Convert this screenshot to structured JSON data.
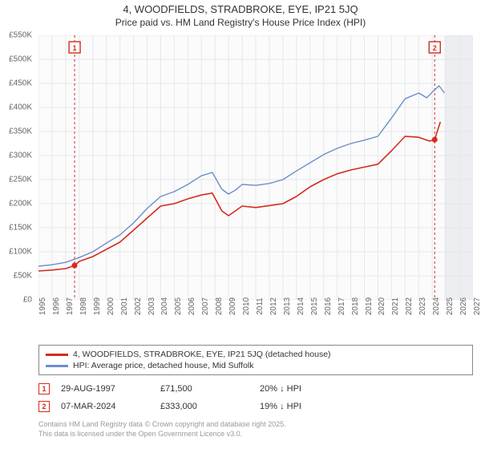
{
  "title": {
    "line1": "4, WOODFIELDS, STRADBROKE, EYE, IP21 5JQ",
    "line2": "Price paid vs. HM Land Registry's House Price Index (HPI)",
    "fontsize_line1": 13,
    "fontsize_line2": 12,
    "color": "#333333"
  },
  "chart": {
    "type": "line",
    "background_color": "#f5f6f7",
    "plot_area_color": "#fbfbfc",
    "grid_color": "#e6e7e9",
    "axis_color": "#cccccc",
    "ylim": [
      0,
      550
    ],
    "ytick_step": 50,
    "y_unit_prefix": "£",
    "y_unit_suffix": "K",
    "xlim": [
      1995,
      2027
    ],
    "xtick_step": 1,
    "x_ticks": [
      1995,
      1996,
      1997,
      1998,
      1999,
      2000,
      2001,
      2002,
      2003,
      2004,
      2005,
      2006,
      2007,
      2008,
      2009,
      2010,
      2011,
      2012,
      2013,
      2014,
      2015,
      2016,
      2017,
      2018,
      2019,
      2020,
      2021,
      2022,
      2023,
      2024,
      2025,
      2026,
      2027
    ],
    "label_fontsize": 10,
    "label_color": "#666666",
    "series": [
      {
        "name": "price_paid",
        "label": "4, WOODFIELDS, STRADBROKE, EYE, IP21 5JQ (detached house)",
        "color": "#d52b1e",
        "line_width": 1.6,
        "data": [
          [
            1995,
            60
          ],
          [
            1996,
            62
          ],
          [
            1997,
            65
          ],
          [
            1997.66,
            71.5
          ],
          [
            1998,
            80
          ],
          [
            1999,
            90
          ],
          [
            2000,
            105
          ],
          [
            2001,
            120
          ],
          [
            2002,
            145
          ],
          [
            2003,
            170
          ],
          [
            2004,
            195
          ],
          [
            2005,
            200
          ],
          [
            2006,
            210
          ],
          [
            2007,
            218
          ],
          [
            2007.8,
            222
          ],
          [
            2008.5,
            185
          ],
          [
            2009,
            175
          ],
          [
            2009.5,
            185
          ],
          [
            2010,
            195
          ],
          [
            2011,
            192
          ],
          [
            2012,
            196
          ],
          [
            2013,
            200
          ],
          [
            2014,
            215
          ],
          [
            2015,
            235
          ],
          [
            2016,
            250
          ],
          [
            2017,
            262
          ],
          [
            2018,
            270
          ],
          [
            2019,
            276
          ],
          [
            2020,
            282
          ],
          [
            2021,
            310
          ],
          [
            2022,
            340
          ],
          [
            2023,
            338
          ],
          [
            2023.8,
            330
          ],
          [
            2024.18,
            333
          ],
          [
            2024.6,
            370
          ]
        ]
      },
      {
        "name": "hpi",
        "label": "HPI: Average price, detached house, Mid Suffolk",
        "color": "#6b8fc8",
        "line_width": 1.4,
        "data": [
          [
            1995,
            70
          ],
          [
            1996,
            73
          ],
          [
            1997,
            78
          ],
          [
            1998,
            88
          ],
          [
            1999,
            100
          ],
          [
            2000,
            118
          ],
          [
            2001,
            135
          ],
          [
            2002,
            160
          ],
          [
            2003,
            190
          ],
          [
            2004,
            215
          ],
          [
            2005,
            225
          ],
          [
            2006,
            240
          ],
          [
            2007,
            258
          ],
          [
            2007.8,
            265
          ],
          [
            2008.5,
            230
          ],
          [
            2009,
            220
          ],
          [
            2009.5,
            228
          ],
          [
            2010,
            240
          ],
          [
            2011,
            238
          ],
          [
            2012,
            242
          ],
          [
            2013,
            250
          ],
          [
            2014,
            268
          ],
          [
            2015,
            285
          ],
          [
            2016,
            302
          ],
          [
            2017,
            315
          ],
          [
            2018,
            325
          ],
          [
            2019,
            332
          ],
          [
            2020,
            340
          ],
          [
            2021,
            378
          ],
          [
            2022,
            418
          ],
          [
            2023,
            430
          ],
          [
            2023.6,
            420
          ],
          [
            2024,
            432
          ],
          [
            2024.5,
            445
          ],
          [
            2024.9,
            430
          ]
        ]
      }
    ],
    "markers": [
      {
        "n": 1,
        "x": 1997.66,
        "y": 71.5,
        "color": "#d52b1e",
        "vline_color": "#d52b1e",
        "vline_dash": "3,3"
      },
      {
        "n": 2,
        "x": 2024.18,
        "y": 333,
        "color": "#d52b1e",
        "vline_color": "#d52b1e",
        "vline_dash": "3,3"
      }
    ],
    "future_fill_start_x": 2024.9,
    "future_fill_color": "#eceef2"
  },
  "legend": {
    "border_color": "#888888",
    "items": [
      {
        "color": "#d52b1e",
        "label": "4, WOODFIELDS, STRADBROKE, EYE, IP21 5JQ (detached house)"
      },
      {
        "color": "#6b8fc8",
        "label": "HPI: Average price, detached house, Mid Suffolk"
      }
    ]
  },
  "transactions": [
    {
      "n": "1",
      "date": "29-AUG-1997",
      "price": "£71,500",
      "delta": "20% ↓ HPI"
    },
    {
      "n": "2",
      "date": "07-MAR-2024",
      "price": "£333,000",
      "delta": "19% ↓ HPI"
    }
  ],
  "footnote": {
    "line1": "Contains HM Land Registry data © Crown copyright and database right 2025.",
    "line2": "This data is licensed under the Open Government Licence v3.0.",
    "color": "#999999",
    "fontsize": 9
  }
}
